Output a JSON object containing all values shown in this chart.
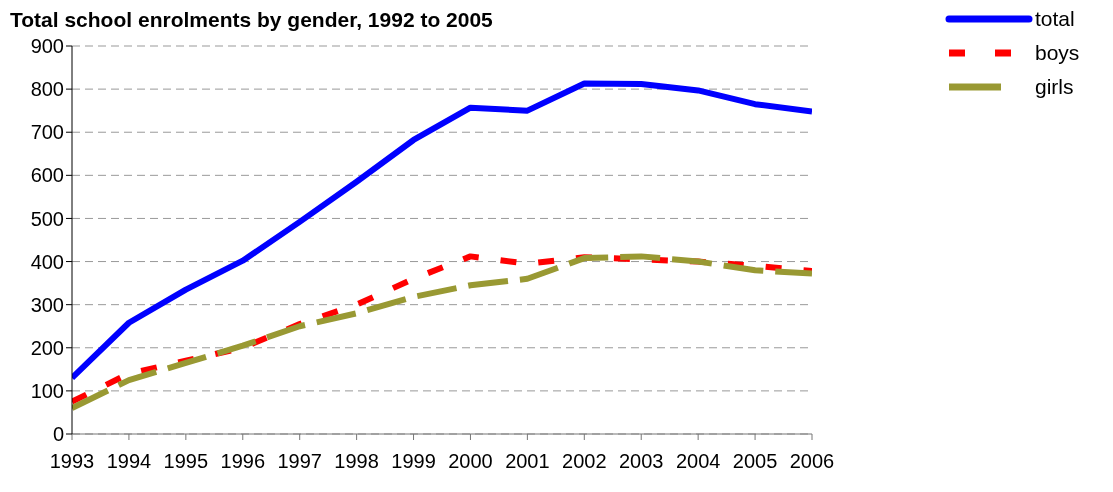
{
  "chart_data": {
    "type": "line",
    "title": "Total school enrolments by gender, 1992 to 2005",
    "x": [
      1993,
      1994,
      1995,
      1996,
      1997,
      1998,
      1999,
      2000,
      2001,
      2002,
      2003,
      2004,
      2005,
      2006
    ],
    "series": [
      {
        "name": "total",
        "color": "#0000ff",
        "line_style": "solid",
        "values": [
          130,
          258,
          335,
          402,
          492,
          585,
          682,
          757,
          750,
          813,
          812,
          797,
          765,
          748
        ]
      },
      {
        "name": "boys",
        "color": "#ff0000",
        "line_style": "dashed",
        "values": [
          75,
          140,
          170,
          200,
          255,
          300,
          360,
          412,
          395,
          410,
          405,
          400,
          390,
          378
        ]
      },
      {
        "name": "girls",
        "color": "#999933",
        "line_style": "dashed",
        "values": [
          60,
          125,
          165,
          205,
          250,
          280,
          318,
          345,
          360,
          408,
          412,
          400,
          380,
          372
        ]
      }
    ],
    "xlim": [
      1993,
      2006
    ],
    "xticks": [
      1993,
      1994,
      1995,
      1996,
      1997,
      1998,
      1999,
      2000,
      2001,
      2002,
      2003,
      2004,
      2005,
      2006
    ],
    "ylim": [
      0,
      900
    ],
    "yticks": [
      0,
      100,
      200,
      300,
      400,
      500,
      600,
      700,
      800,
      900
    ],
    "grid": "y",
    "legend": "top right",
    "marker": "none"
  }
}
